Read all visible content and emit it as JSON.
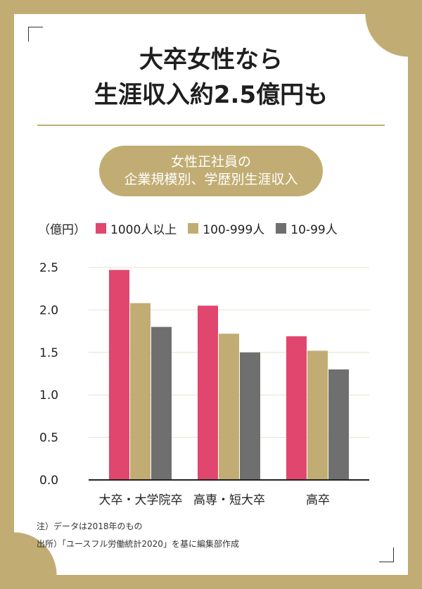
{
  "title_lines": [
    "大卒女性なら",
    "生涯収入約2.5億円も"
  ],
  "subtitle_lines": [
    "女性正社員の",
    "企業規模別、学歴別生涯収入"
  ],
  "notes": [
    "注）データは2018年のもの",
    "出所）「ユースフル労働統計2020」を基に編集部作成"
  ],
  "colors": {
    "background": "#c1ad73",
    "accent": "#c1ad73"
  },
  "chart_data": {
    "type": "bar",
    "unit_label": "（億円）",
    "categories": [
      "大卒・大学院卒",
      "高専・短大卒",
      "高卒"
    ],
    "series": [
      {
        "name": "1000人以上",
        "color": "#e0466e",
        "values": [
          2.47,
          2.05,
          1.69
        ]
      },
      {
        "name": "100-999人",
        "color": "#c1ad73",
        "values": [
          2.08,
          1.72,
          1.52
        ]
      },
      {
        "name": "10-99人",
        "color": "#6f6f6f",
        "values": [
          1.8,
          1.5,
          1.3
        ]
      }
    ],
    "y_ticks": [
      "0.0",
      "0.5",
      "1.0",
      "1.5",
      "2.0",
      "2.5"
    ],
    "ylim": [
      0,
      2.5
    ],
    "grid": true,
    "legend_position": "top"
  }
}
